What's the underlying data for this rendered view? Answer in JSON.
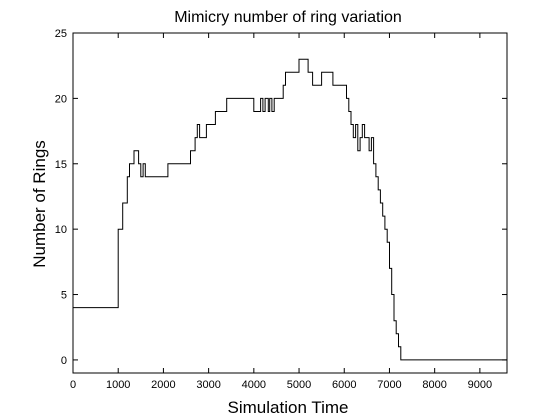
{
  "chart_data": {
    "type": "line",
    "title": "Mimicry number of ring variation",
    "xlabel": "Simulation Time",
    "ylabel": "Number of Rings",
    "xlim": [
      0,
      9600
    ],
    "ylim": [
      -1,
      25
    ],
    "xticks": [
      0,
      1000,
      2000,
      3000,
      4000,
      5000,
      6000,
      7000,
      8000,
      9000
    ],
    "yticks": [
      0,
      5,
      10,
      15,
      20,
      25
    ],
    "grid": false,
    "line_color": "#000000",
    "series": [
      {
        "x": [
          0,
          1000,
          1000,
          1040,
          1040,
          1100,
          1100,
          1150,
          1150,
          1200,
          1200,
          1250,
          1250,
          1350,
          1350,
          1450,
          1450,
          1500,
          1500,
          1550,
          1550,
          1600,
          1600,
          1700,
          1700,
          1750,
          1750,
          2100,
          2100,
          2600,
          2600,
          2700,
          2700,
          2750,
          2750,
          2800,
          2800,
          2900,
          2900,
          2950,
          2950,
          3150,
          3150,
          3250,
          3250,
          3350,
          3350,
          3400,
          3400,
          3450,
          3450,
          4000,
          4000,
          4150,
          4150,
          4200,
          4200,
          4250,
          4250,
          4320,
          4320,
          4350,
          4350,
          4400,
          4400,
          4450,
          4450,
          4550,
          4550,
          4650,
          4650,
          4700,
          4700,
          4750,
          4750,
          4800,
          4800,
          5000,
          5000,
          5200,
          5200,
          5300,
          5300,
          5500,
          5500,
          5750,
          5750,
          6000,
          6000,
          6050,
          6050,
          6100,
          6100,
          6150,
          6150,
          6200,
          6200,
          6250,
          6250,
          6300,
          6300,
          6350,
          6350,
          6400,
          6400,
          6450,
          6450,
          6500,
          6500,
          6550,
          6550,
          6600,
          6600,
          6650,
          6650,
          6700,
          6700,
          6750,
          6750,
          6800,
          6800,
          6850,
          6850,
          6900,
          6900,
          6950,
          6950,
          7000,
          7000,
          7050,
          7050,
          7100,
          7100,
          7150,
          7150,
          7200,
          7200,
          7250,
          7250,
          7300,
          7300,
          7350,
          7350,
          7400,
          7400,
          9600
        ],
        "values": [
          4,
          4,
          10,
          10,
          10,
          10,
          12,
          12,
          12,
          12,
          14,
          14,
          15,
          15,
          16,
          16,
          15,
          15,
          14,
          14,
          15,
          15,
          14,
          14,
          14,
          14,
          14,
          14,
          15,
          15,
          16,
          16,
          17,
          17,
          18,
          18,
          17,
          17,
          17,
          17,
          18,
          18,
          19,
          19,
          19,
          19,
          19,
          19,
          20,
          20,
          20,
          20,
          19,
          19,
          20,
          20,
          19,
          19,
          20,
          20,
          19,
          19,
          20,
          20,
          19,
          19,
          20,
          20,
          20,
          20,
          21,
          21,
          22,
          22,
          22,
          22,
          22,
          22,
          23,
          23,
          22,
          22,
          21,
          21,
          22,
          22,
          21,
          21,
          21,
          21,
          20,
          20,
          19,
          19,
          18,
          18,
          17,
          17,
          18,
          18,
          16,
          16,
          17,
          17,
          18,
          18,
          17,
          17,
          17,
          17,
          16,
          16,
          17,
          17,
          15,
          15,
          14,
          14,
          13,
          13,
          12,
          12,
          11,
          11,
          10,
          10,
          9,
          9,
          7,
          7,
          5,
          5,
          3,
          3,
          2,
          2,
          1,
          1,
          0,
          0,
          0,
          0,
          0,
          0,
          0,
          0
        ]
      }
    ]
  }
}
